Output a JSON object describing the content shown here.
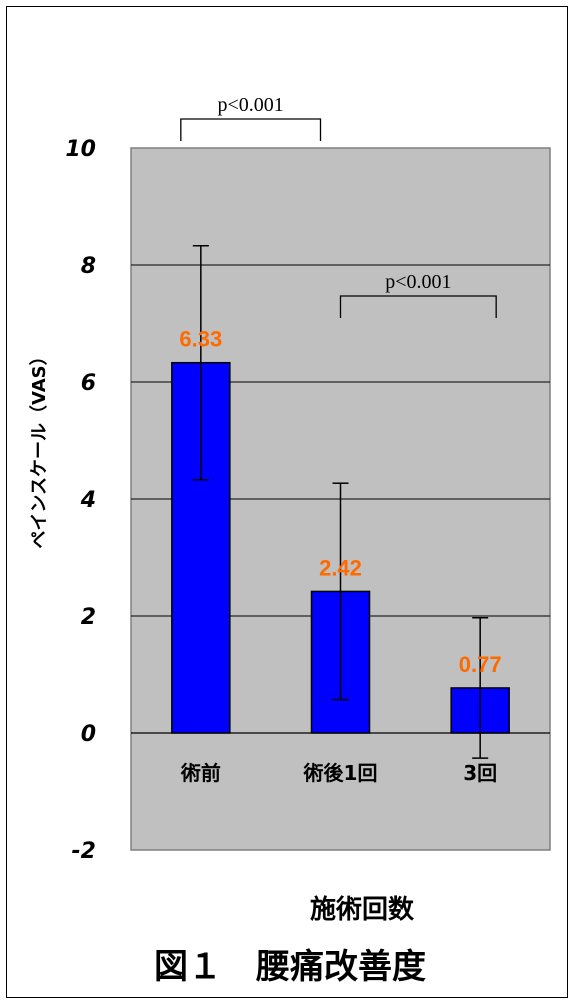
{
  "chart_data": {
    "type": "bar",
    "title": "図１　腰痛改善度",
    "xlabel": "施術回数",
    "ylabel": "ペインスケール（VAS）",
    "ylim": [
      -2,
      10
    ],
    "yticks": [
      10,
      8,
      6,
      4,
      2,
      0,
      -2
    ],
    "grid": true,
    "categories": [
      "術前",
      "術後1回",
      "3回"
    ],
    "values": [
      6.33,
      2.42,
      0.77
    ],
    "value_labels": [
      "6.33",
      "2.42",
      "0.77"
    ],
    "error": [
      2.0,
      1.85,
      1.2
    ],
    "significance": [
      {
        "from": 0,
        "to": 1,
        "label": "p<0.001"
      },
      {
        "from": 1,
        "to": 2,
        "label": "p<0.001"
      }
    ],
    "colors": {
      "bar": "#0000ff",
      "bar_edge": "#000000",
      "plot_bg": "#c0c0c0",
      "value_label": "#ff6a00"
    }
  }
}
